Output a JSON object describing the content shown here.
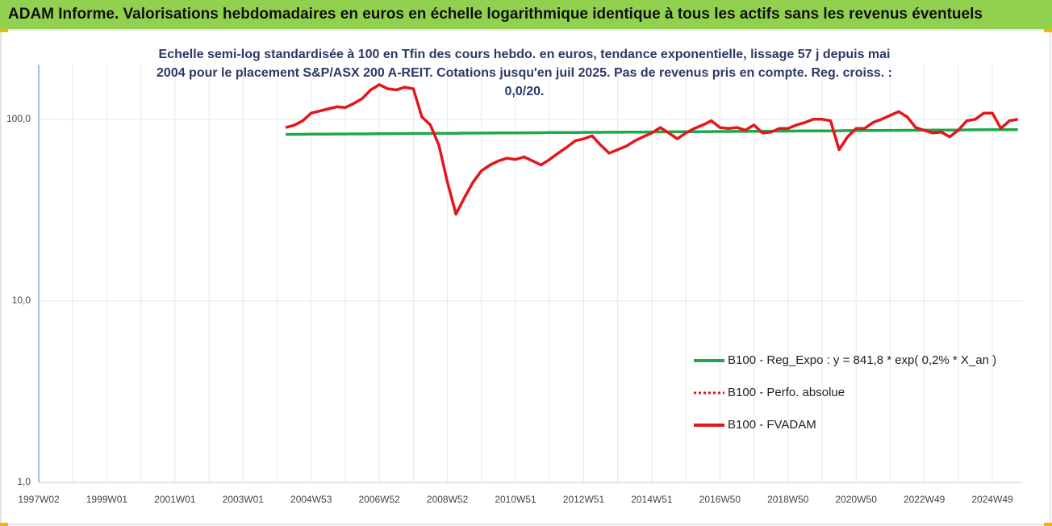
{
  "page_title": "ADAM Informe. Valorisations hebdomadaires en euros en échelle logarithmique identique à tous les actifs sans les revenus éventuels",
  "chart_data": {
    "type": "line",
    "title": "Echelle semi-log standardisée à 100 en Tfin des cours hebdo. en euros, tendance exponentielle, lissage 57 j depuis mai 2004 pour le placement S&P/ASX 200 A-REIT. Cotations jusqu'en juil 2025. Pas de revenus pris en compte. Reg. croiss. : 0,0/20.",
    "log_scale": true,
    "grid": true,
    "legend": "lower right",
    "ylim": [
      1,
      200
    ],
    "yticks": [
      {
        "value": 1,
        "label": "1,0"
      },
      {
        "value": 10,
        "label": "10,0"
      },
      {
        "value": 100,
        "label": "100,0"
      }
    ],
    "categories": [
      "1997W02",
      null,
      null,
      null,
      null,
      null,
      null,
      null,
      "1999W01",
      null,
      null,
      null,
      null,
      null,
      null,
      null,
      "2001W01",
      null,
      null,
      null,
      null,
      null,
      null,
      null,
      "2003W01",
      null,
      null,
      null,
      null,
      null,
      null,
      null,
      "2004W53",
      null,
      null,
      null,
      null,
      null,
      null,
      null,
      "2006W52",
      null,
      null,
      null,
      null,
      null,
      null,
      null,
      "2008W52",
      null,
      null,
      null,
      null,
      null,
      null,
      null,
      "2010W51",
      null,
      null,
      null,
      null,
      null,
      null,
      null,
      "2012W51",
      null,
      null,
      null,
      null,
      null,
      null,
      null,
      "2014W51",
      null,
      null,
      null,
      null,
      null,
      null,
      null,
      "2016W50",
      null,
      null,
      null,
      null,
      null,
      null,
      null,
      "2018W50",
      null,
      null,
      null,
      null,
      null,
      null,
      null,
      "2020W50",
      null,
      null,
      null,
      null,
      null,
      null,
      null,
      "2022W49",
      null,
      null,
      null,
      null,
      null,
      null,
      null,
      "2024W49",
      null,
      null,
      null
    ],
    "series": [
      {
        "name": "B100 - Reg_Expo : y = 841,8 * exp( 0,2% *  X_an )",
        "color": "#1fa84a",
        "style": "solid",
        "values": [
          null,
          null,
          null,
          null,
          null,
          null,
          null,
          null,
          null,
          null,
          null,
          null,
          null,
          null,
          null,
          null,
          null,
          null,
          null,
          null,
          null,
          null,
          null,
          null,
          null,
          null,
          null,
          null,
          null,
          82.5,
          82.6,
          82.6,
          82.7,
          82.7,
          82.8,
          82.9,
          82.9,
          83.0,
          83.0,
          83.1,
          83.2,
          83.2,
          83.3,
          83.3,
          83.4,
          83.5,
          83.5,
          83.6,
          83.6,
          83.7,
          83.8,
          83.8,
          83.9,
          83.9,
          84.0,
          84.1,
          84.1,
          84.2,
          84.2,
          84.3,
          84.4,
          84.4,
          84.5,
          84.5,
          84.6,
          84.7,
          84.7,
          84.8,
          84.8,
          84.9,
          85.0,
          85.0,
          85.1,
          85.1,
          85.2,
          85.3,
          85.3,
          85.4,
          85.4,
          85.5,
          85.6,
          85.6,
          85.7,
          85.7,
          85.8,
          85.9,
          85.9,
          86.0,
          86.0,
          86.1,
          86.2,
          86.2,
          86.3,
          86.3,
          86.4,
          86.5,
          86.5,
          86.6,
          86.6,
          86.7,
          86.8,
          86.8,
          86.9,
          86.9,
          87.0,
          87.1,
          87.1,
          87.2,
          87.2,
          87.3,
          87.4,
          87.4,
          87.5,
          87.5,
          87.6,
          87.7
        ]
      },
      {
        "name": "B100 - Perfo. absolue",
        "color": "#e3161b",
        "style": "dotted",
        "values": [
          null,
          null,
          null,
          null,
          null,
          null,
          null,
          null,
          null,
          null,
          null,
          null,
          null,
          null,
          null,
          null,
          null,
          null,
          null,
          null,
          null,
          null,
          null,
          null,
          null,
          null,
          null,
          null,
          null,
          90,
          92.6,
          98,
          108,
          111,
          114,
          117,
          116,
          122,
          130,
          145,
          155,
          147,
          145,
          150,
          147,
          103,
          93,
          72,
          45,
          30,
          37,
          45,
          52,
          56,
          59,
          61,
          60,
          62,
          59,
          56,
          60,
          65,
          70,
          76,
          78,
          81,
          72,
          65,
          68,
          71,
          76,
          80,
          84,
          90,
          84,
          78,
          84,
          89,
          93,
          98,
          90,
          89,
          90,
          87,
          93,
          84,
          85,
          89,
          89,
          93,
          96,
          100,
          100,
          98,
          68,
          80,
          89,
          89,
          96,
          100,
          105,
          110,
          103,
          90,
          87,
          84,
          85,
          80,
          87,
          98,
          100,
          108,
          108,
          89,
          98,
          100
        ]
      },
      {
        "name": "B100 - FVADAM",
        "color": "#e3161b",
        "style": "solid",
        "values": [
          null,
          null,
          null,
          null,
          null,
          null,
          null,
          null,
          null,
          null,
          null,
          null,
          null,
          null,
          null,
          null,
          null,
          null,
          null,
          null,
          null,
          null,
          null,
          null,
          null,
          null,
          null,
          null,
          null,
          90,
          92.6,
          98,
          108,
          111,
          114,
          117,
          116,
          122,
          130,
          145,
          155,
          147,
          145,
          150,
          147,
          103,
          93,
          72,
          45,
          30,
          37,
          45,
          52,
          56,
          59,
          61,
          60,
          62,
          59,
          56,
          60,
          65,
          70,
          76,
          78,
          81,
          72,
          65,
          68,
          71,
          76,
          80,
          84,
          90,
          84,
          78,
          84,
          89,
          93,
          98,
          90,
          89,
          90,
          87,
          93,
          84,
          85,
          89,
          89,
          93,
          96,
          100,
          100,
          98,
          68,
          80,
          89,
          89,
          96,
          100,
          105,
          110,
          103,
          90,
          87,
          84,
          85,
          80,
          87,
          98,
          100,
          108,
          108,
          89,
          98,
          100
        ]
      }
    ]
  }
}
